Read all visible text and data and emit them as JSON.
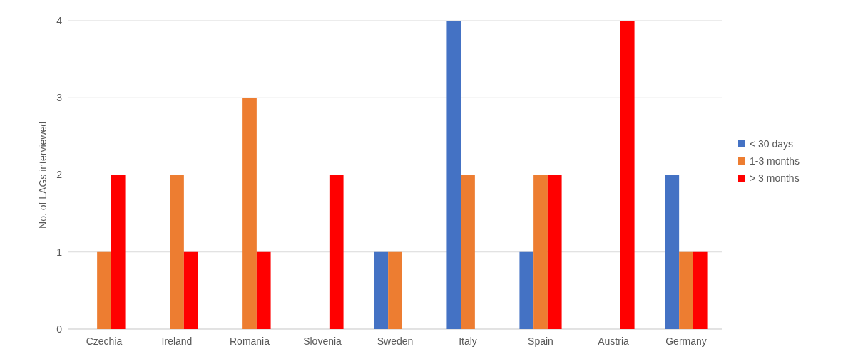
{
  "chart_data": {
    "type": "bar",
    "ylabel": "No. of LAGs interviewed",
    "categories": [
      "Czechia",
      "Ireland",
      "Romania",
      "Slovenia",
      "Sweden",
      "Italy",
      "Spain",
      "Austria",
      "Germany"
    ],
    "series": [
      {
        "name": "< 30 days",
        "color": "#4472c4",
        "values": [
          0,
          0,
          0,
          0,
          1,
          4,
          1,
          0,
          2
        ]
      },
      {
        "name": "1-3 months",
        "color": "#ed7d31",
        "values": [
          1,
          2,
          3,
          0,
          1,
          2,
          2,
          0,
          1
        ]
      },
      {
        "name": "> 3 months",
        "color": "#ff0000",
        "values": [
          2,
          1,
          1,
          2,
          0,
          0,
          2,
          4,
          1
        ]
      }
    ],
    "ylim": [
      0,
      4
    ],
    "yticks": [
      0,
      1,
      2,
      3,
      4
    ],
    "grid": "y",
    "legend": "right"
  }
}
